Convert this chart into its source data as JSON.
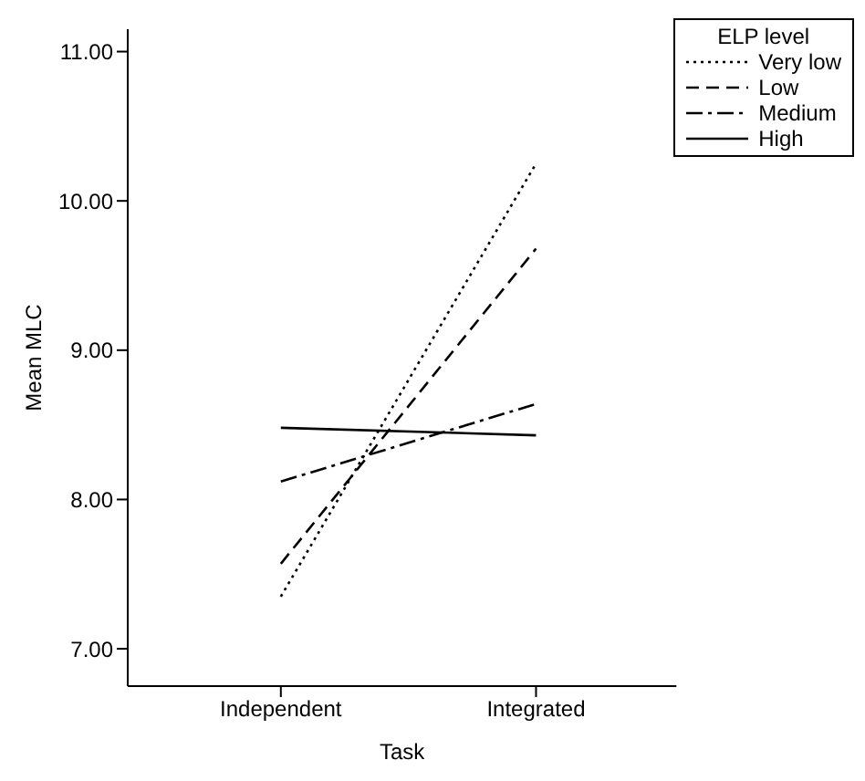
{
  "chart_data": {
    "type": "line",
    "xlabel": "Task",
    "ylabel": "Mean MLC",
    "legend_title": "ELP level",
    "categories": [
      "Independent",
      "Integrated"
    ],
    "series": [
      {
        "name": "Very low",
        "color": "#000000",
        "line_style": "dotted",
        "values": [
          7.35,
          10.25
        ]
      },
      {
        "name": "Low",
        "color": "#000000",
        "line_style": "dashed",
        "values": [
          7.57,
          9.68
        ]
      },
      {
        "name": "Medium",
        "color": "#000000",
        "line_style": "dashdot",
        "values": [
          8.12,
          8.64
        ]
      },
      {
        "name": "High",
        "color": "#000000",
        "line_style": "solid",
        "values": [
          8.48,
          8.43
        ]
      }
    ],
    "ylim": [
      6.75,
      11.15
    ],
    "yticks": [
      {
        "value": 7,
        "label": "7.00"
      },
      {
        "value": 8,
        "label": "8.00"
      },
      {
        "value": 9,
        "label": "9.00"
      },
      {
        "value": 10,
        "label": "10.00"
      },
      {
        "value": 11,
        "label": "11.00"
      }
    ],
    "grid": false,
    "legend": "top right",
    "marker": "none"
  }
}
